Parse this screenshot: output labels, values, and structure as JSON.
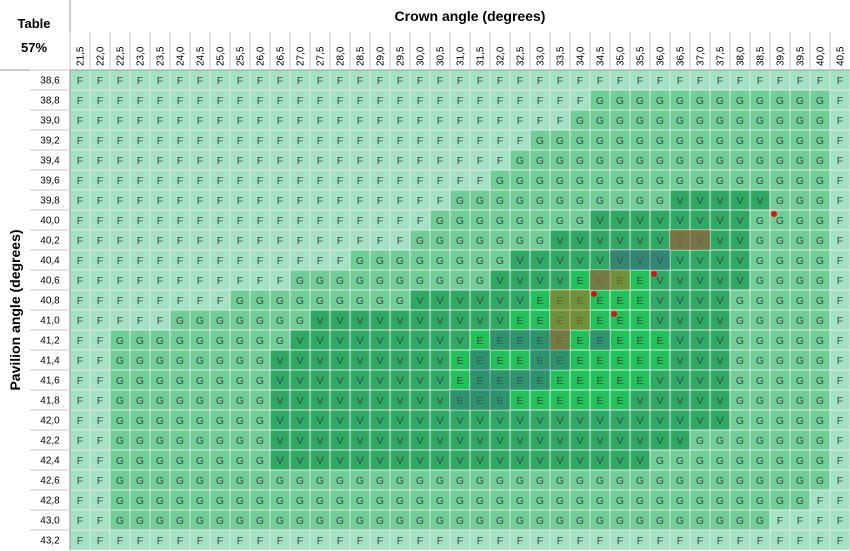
{
  "corner": {
    "title": "Table",
    "value": "57%"
  },
  "chart_data": {
    "type": "heatmap",
    "title": "",
    "xlabel": "Crown angle (degrees)",
    "ylabel": "Pavilion angle (degrees)",
    "x": [
      "21,5",
      "22,0",
      "22,5",
      "23,0",
      "23,5",
      "24,0",
      "24,5",
      "25,0",
      "25,5",
      "26,0",
      "26,5",
      "27,0",
      "27,5",
      "28,0",
      "28,5",
      "29,0",
      "29,5",
      "30,0",
      "30,5",
      "31,0",
      "31,5",
      "32,0",
      "32,5",
      "33,0",
      "33,5",
      "34,0",
      "34,5",
      "35,0",
      "35,5",
      "36,0",
      "36,5",
      "37,0",
      "37,5",
      "38,0",
      "38,5",
      "39,0",
      "39,5",
      "40,0",
      "40,5"
    ],
    "y": [
      "38,6",
      "38,8",
      "39,0",
      "39,2",
      "39,4",
      "39,6",
      "39,8",
      "40,0",
      "40,2",
      "40,4",
      "40,6",
      "40,8",
      "41,0",
      "41,2",
      "41,4",
      "41,6",
      "41,8",
      "42,0",
      "42,2",
      "42,4",
      "42,6",
      "42,8",
      "43,0",
      "43,2"
    ],
    "grades": [
      "FFFFFFFFFFFFFFFFFFFFFFFFFFFFFFFFFFFFFFF",
      "FFFFFFFFFFFFFFFFFFFFFFFFFFGGGGGGGGGGGGF",
      "FFFFFFFFFFFFFFFFFFFFFFFFFGGGGGGGGGGGGGF",
      "FFFFFFFFFFFFFFFFFFFFFFFGGGGGGGGGGGGGGGF",
      "FFFFFFFFFFFFFFFFFFFFFFGGGGGGGGGGGGGGGGF",
      "FFFFFFFFFFFFFFFFFFFFFGGGGGGGGGGGGGGGGGF",
      "FFFFFFFFFFFFFFFFFFFGGGGGGGGGGGVVVVVGGGF",
      "FFFFFFFFFFFFFFFFFFGGGGGGGGVVVVVVVVGGGGF",
      "FFFFFFFFFFFFFFFFFGGGGGGGVVVVVVVVVVGGGGF",
      "FFFFFFFFFFFFFFGGGGGGGGVVVVVVVVVVVVGGGGF",
      "FFFFFFFFFFFGGGGGGGGGGVVVVEEEEVVVVVGGGGF",
      "FFFFFFFFGGGGGGGGGVVVVVVEEEEEEVVVVGGGGGF",
      "FFFFFGGGGGGGVVVVVVVVVVEEEEEEEVVVVGGGGGF",
      "FFGGGGGGGGGVVVVVVVVVEEEEEEEEEEVVVGGGGGF",
      "FFGGGGGGGGVVVVVVVVVEEEEEEEEEEEVVVGGGGGF",
      "FFGGGGGGGGVVVVVVVVVEEEEEEEEEEVVVVGGGGGF",
      "FFGGGGGGGGVVVVVVVVVEEEEEEEEEVVVVVGGGGGF",
      "FFGGGGGGGGVVVVVVVVVVVVVVVVVVVVVVVGGGGGF",
      "FFGGGGGGGGVVVVVVVVVVVVVVVVVVVVVGGGGGGGF",
      "FFGGGGGGGGVVVVVVVVVVVVVVVVVVVGGGGGGGGGF",
      "FFGGGGGGGGGGGGGGGGGGGGGGGGGGGGGGGGGGGGF",
      "FFGGGGGGGGGGGGGGGGGGGGGGGGGGGGGGGGGGGFF",
      "FFGGGGGGGGGGGGGGGGGGGGGGGGGGGGGGGGGFFFF",
      "FFFFFFFFFFFFFFFFFFFFFFFFFFFFFFFFFFFFFFF"
    ],
    "grade_colors": {
      "F": "#a3e3c4",
      "G": "#6fcf97",
      "V": "#2faa64",
      "E": "#1fc35a"
    },
    "highlight_cells": {
      "darkened_gray": [
        [
          "34,5",
          "40,6"
        ],
        [
          "35,0",
          "40,4"
        ],
        [
          "35,5",
          "40,4"
        ],
        [
          "36,0",
          "40,4"
        ],
        [
          "36,5",
          "40,2"
        ],
        [
          "37,0",
          "40,2"
        ]
      ],
      "darkened_gray_lower_left": [
        [
          "32,0",
          "41,2"
        ],
        [
          "32,5",
          "41,2"
        ],
        [
          "33,0",
          "41,4"
        ],
        [
          "31,5",
          "41,4"
        ],
        [
          "31,5",
          "41,6"
        ],
        [
          "31,0",
          "41,8"
        ],
        [
          "31,5",
          "41,8"
        ],
        [
          "32,0",
          "41,8"
        ],
        [
          "32,0",
          "41,6"
        ],
        [
          "32,5",
          "41,6"
        ],
        [
          "33,0",
          "41,6"
        ],
        [
          "33,5",
          "41,4"
        ],
        [
          "33,5",
          "41,2"
        ],
        [
          "33,0",
          "41,2"
        ],
        [
          "34,5",
          "41,2"
        ]
      ],
      "brownish": [
        [
          "33,5",
          "41,2"
        ],
        [
          "34,0",
          "41,0"
        ],
        [
          "33,5",
          "41,0"
        ],
        [
          "34,0",
          "40,8"
        ],
        [
          "34,5",
          "40,6"
        ],
        [
          "35,0",
          "40,6"
        ],
        [
          "33,5",
          "40,8"
        ],
        [
          "36,5",
          "40,2"
        ],
        [
          "37,0",
          "40,2"
        ]
      ]
    },
    "points": [
      [
        "34,5",
        "40,8"
      ],
      [
        "36,0",
        "40,6"
      ],
      [
        "39,0",
        "40,0"
      ],
      [
        "35,0",
        "41,0"
      ]
    ]
  }
}
